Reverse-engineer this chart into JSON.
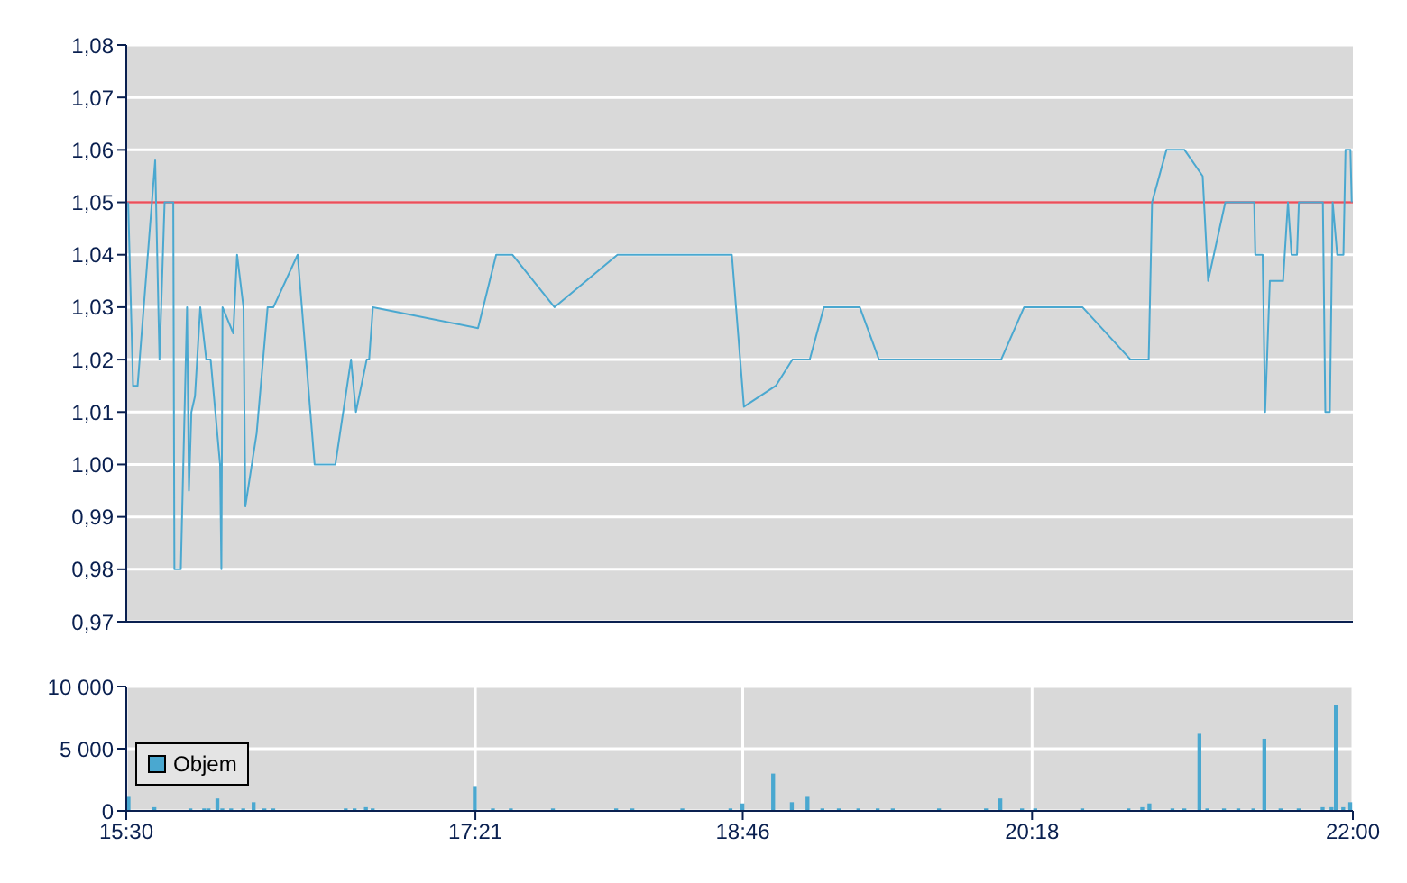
{
  "chart_data": [
    {
      "type": "line",
      "x": [
        15.51,
        15.536,
        15.56,
        15.653,
        15.676,
        15.703,
        15.749,
        15.755,
        15.789,
        15.822,
        15.832,
        15.845,
        15.864,
        15.892,
        15.924,
        15.947,
        15.997,
        16.004,
        16.01,
        16.067,
        16.087,
        16.121,
        16.131,
        16.191,
        16.249,
        16.28,
        16.408,
        16.498,
        16.608,
        16.691,
        16.717,
        16.774,
        16.787,
        16.807,
        17.364,
        17.46,
        17.546,
        17.769,
        18.103,
        18.709,
        18.773,
        18.942,
        19.03,
        19.122,
        19.197,
        19.387,
        19.489,
        20.136,
        20.258,
        20.567,
        20.822,
        20.918,
        20.936,
        21.012,
        21.108,
        21.204,
        21.233,
        21.324,
        21.477,
        21.483,
        21.522,
        21.535,
        21.56,
        21.63,
        21.656,
        21.675,
        21.704,
        21.714,
        21.841,
        21.854,
        21.878,
        21.893,
        21.917,
        21.95,
        21.961,
        21.987,
        21.994
      ],
      "series": [
        {
          "color": "#4aa8d0",
          "values": [
            1.05,
            1.015,
            1.015,
            1.058,
            1.02,
            1.05,
            1.05,
            0.98,
            0.98,
            1.03,
            0.995,
            1.01,
            1.013,
            1.03,
            1.02,
            1.02,
            1.0,
            0.98,
            1.03,
            1.025,
            1.04,
            1.03,
            0.992,
            1.006,
            1.03,
            1.03,
            1.04,
            1.0,
            1.0,
            1.02,
            1.01,
            1.02,
            1.02,
            1.03,
            1.026,
            1.04,
            1.04,
            1.03,
            1.04,
            1.04,
            1.011,
            1.015,
            1.02,
            1.02,
            1.03,
            1.03,
            1.02,
            1.02,
            1.03,
            1.03,
            1.02,
            1.02,
            1.05,
            1.06,
            1.06,
            1.055,
            1.035,
            1.05,
            1.05,
            1.04,
            1.04,
            1.01,
            1.035,
            1.035,
            1.05,
            1.04,
            1.04,
            1.05,
            1.05,
            1.01,
            1.01,
            1.05,
            1.04,
            1.04,
            1.06,
            1.06,
            1.05
          ]
        }
      ],
      "xlim": [
        15.5,
        22
      ],
      "xticks": [
        {
          "value": 15.5,
          "label": null
        },
        {
          "value": 17.35,
          "label": null
        },
        {
          "value": 18.7667,
          "label": null
        },
        {
          "value": 20.3,
          "label": null
        },
        {
          "value": 22,
          "label": null
        }
      ],
      "ylim": [
        0.97,
        1.08
      ],
      "yticks": [
        {
          "value": 0.97,
          "label": "0,97"
        },
        {
          "value": 0.98,
          "label": "0,98"
        },
        {
          "value": 0.99,
          "label": "0,99"
        },
        {
          "value": 1.0,
          "label": "1,00"
        },
        {
          "value": 1.01,
          "label": "1,01"
        },
        {
          "value": 1.02,
          "label": "1,02"
        },
        {
          "value": 1.03,
          "label": "1,03"
        },
        {
          "value": 1.04,
          "label": "1,04"
        },
        {
          "value": 1.05,
          "label": "1,05"
        },
        {
          "value": 1.06,
          "label": "1,06"
        },
        {
          "value": 1.07,
          "label": "1,07"
        },
        {
          "value": 1.08,
          "label": "1,08"
        }
      ],
      "ref_lines": [
        {
          "axis": "y",
          "value": 1.05,
          "color": "#e8505b"
        }
      ],
      "grid": true,
      "tick_labels": "y"
    },
    {
      "type": "bar",
      "x": [
        15.513,
        15.65,
        15.841,
        15.914,
        15.937,
        15.984,
        16.01,
        16.057,
        16.121,
        16.176,
        16.233,
        16.28,
        16.664,
        16.711,
        16.771,
        16.807,
        17.348,
        17.444,
        17.539,
        17.762,
        18.097,
        18.183,
        18.448,
        18.703,
        18.766,
        18.929,
        19.028,
        19.111,
        19.19,
        19.277,
        19.381,
        19.483,
        19.563,
        19.808,
        20.057,
        20.133,
        20.248,
        20.318,
        20.567,
        20.812,
        20.885,
        20.923,
        21.045,
        21.108,
        21.188,
        21.23,
        21.318,
        21.394,
        21.474,
        21.532,
        21.618,
        21.714,
        21.841,
        21.888,
        21.911,
        21.95,
        21.987
      ],
      "series": [
        {
          "name": "Objem",
          "color": "#4aa8d0",
          "values": [
            1200,
            300,
            200,
            200,
            200,
            1000,
            200,
            200,
            200,
            700,
            200,
            200,
            200,
            200,
            300,
            200,
            2000,
            200,
            200,
            200,
            200,
            200,
            200,
            200,
            600,
            3000,
            700,
            1200,
            200,
            200,
            200,
            200,
            200,
            200,
            200,
            1000,
            200,
            200,
            200,
            200,
            300,
            600,
            200,
            200,
            6200,
            200,
            200,
            200,
            200,
            5800,
            200,
            200,
            300,
            300,
            8500,
            300,
            700
          ]
        }
      ],
      "xlim": [
        15.5,
        22
      ],
      "xticks": [
        {
          "value": 15.5,
          "label": "15:30"
        },
        {
          "value": 17.35,
          "label": "17:21"
        },
        {
          "value": 18.7667,
          "label": "18:46"
        },
        {
          "value": 20.3,
          "label": "20:18"
        },
        {
          "value": 22,
          "label": "22:00"
        }
      ],
      "ylim": [
        0,
        10000
      ],
      "yticks": [
        {
          "value": 0,
          "label": "0"
        },
        {
          "value": 5000,
          "label": "5 000"
        },
        {
          "value": 10000,
          "label": "10 000"
        }
      ],
      "grid": true,
      "legend": "left"
    }
  ]
}
